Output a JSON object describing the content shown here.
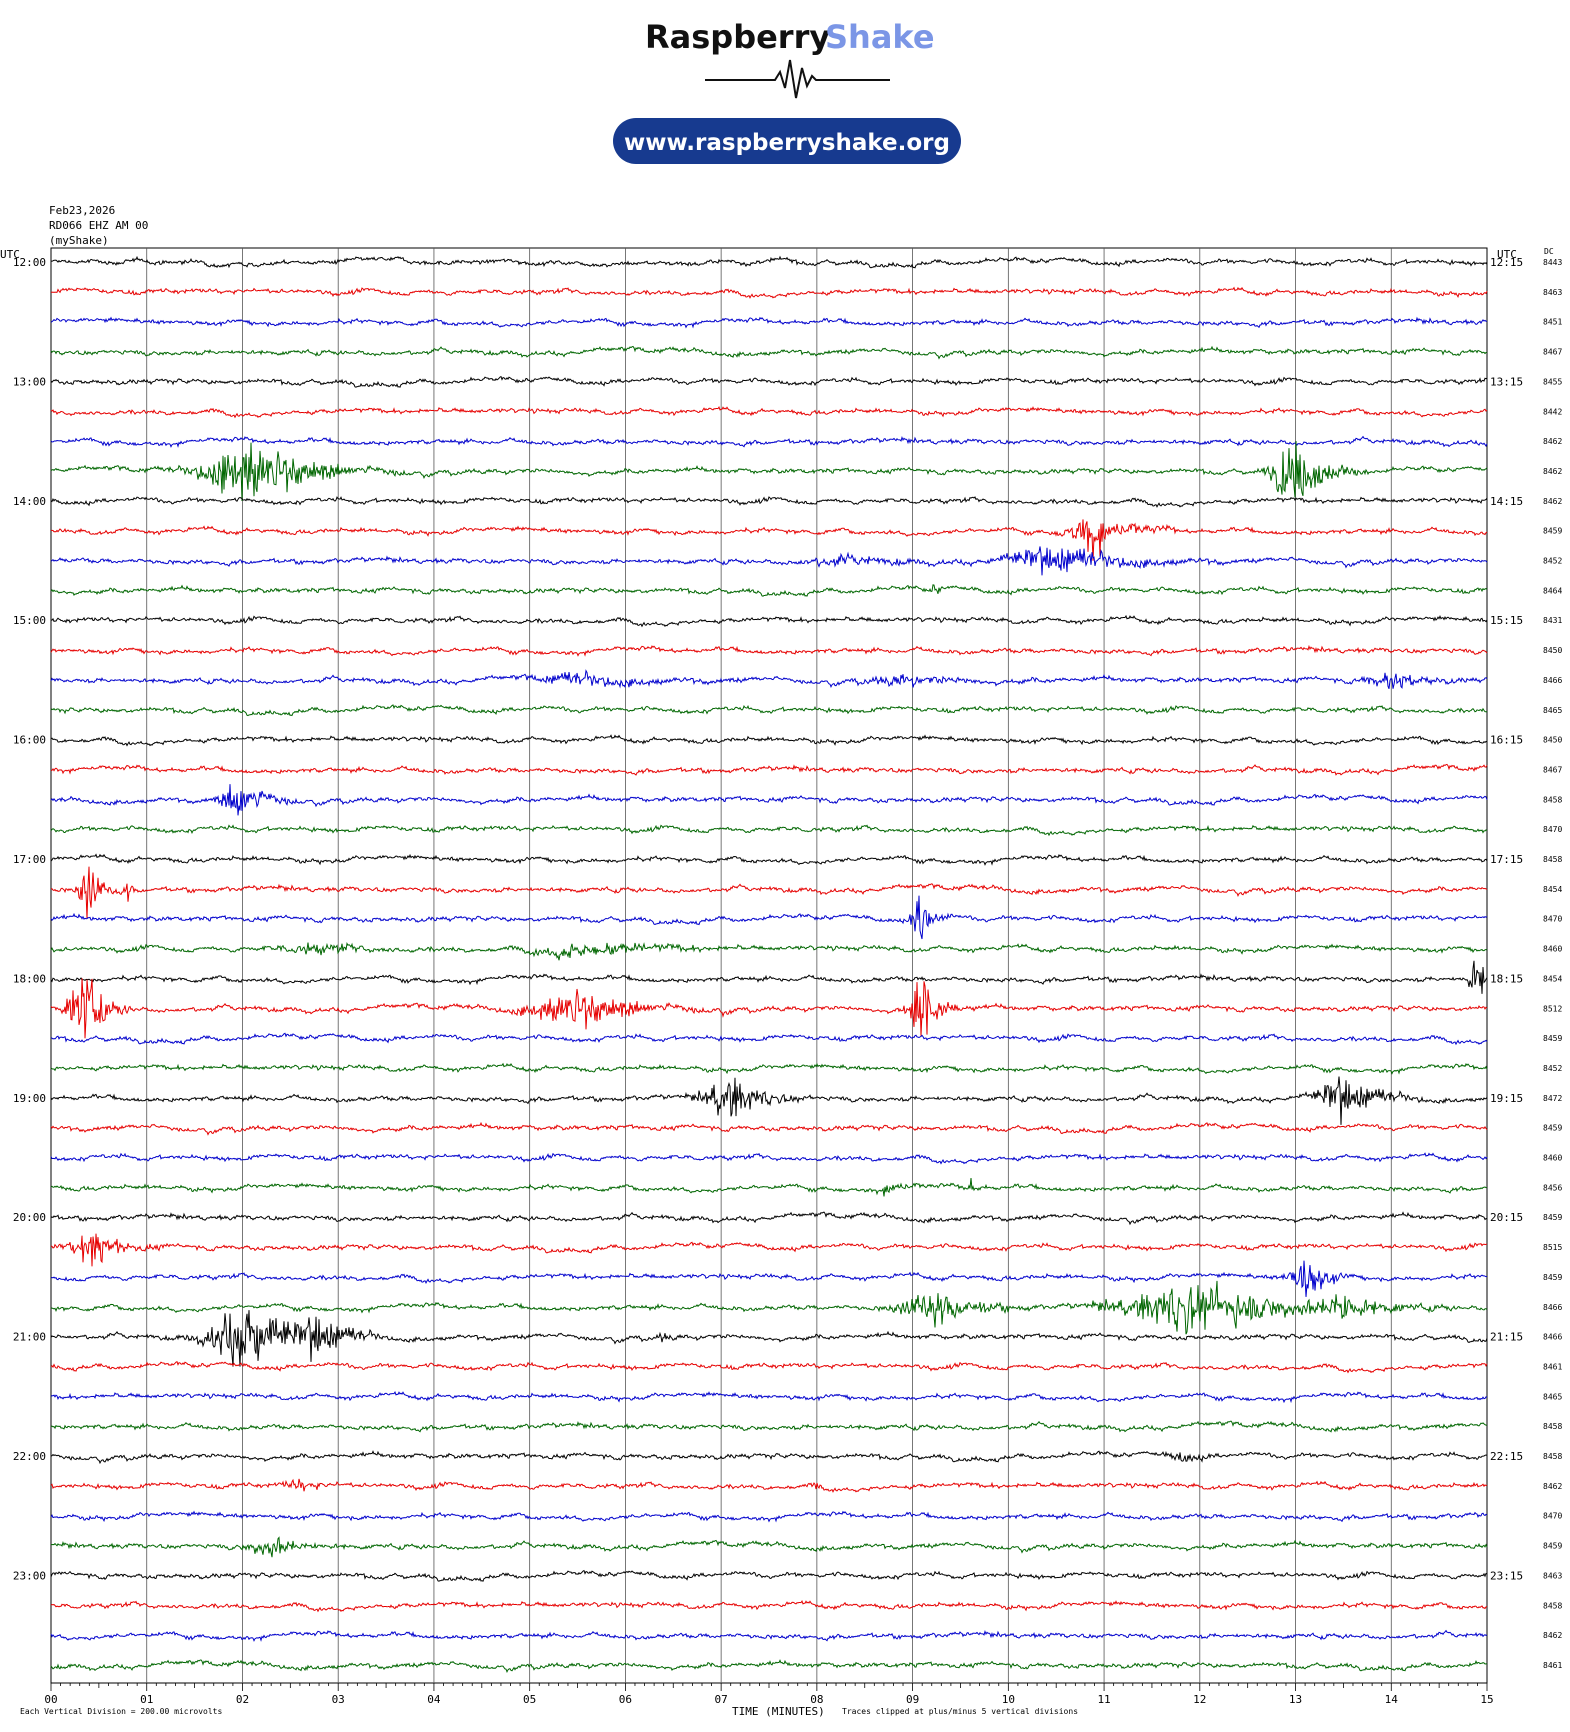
{
  "brand": {
    "name_part1": "Raspberry",
    "name_part2": "Shake",
    "url": "www.raspberryshake.org",
    "accent_color": "#7b96e6",
    "pill_color": "#173a8f"
  },
  "header": {
    "date": "Feb23,2026",
    "station": "RD066 EHZ AM 00",
    "source": "(myShake)"
  },
  "left_axis_title": "UTC",
  "right_axis_title": "UTC",
  "dc_title": "DC",
  "footer": {
    "scale_note": "Each Vertical Division =  200.00 microvolts",
    "x_title": "TIME (MINUTES)",
    "clip_note": "Traces clipped at plus/minus 5 vertical divisions"
  },
  "trace_colors": [
    "#000000",
    "#e60000",
    "#0000cc",
    "#006600"
  ],
  "chart_data": {
    "type": "line",
    "title": "",
    "xlabel": "TIME (MINUTES)",
    "ylabel": "UTC",
    "xlim": [
      0,
      15
    ],
    "x_ticks": [
      "00",
      "01",
      "02",
      "03",
      "04",
      "05",
      "06",
      "07",
      "08",
      "09",
      "10",
      "11",
      "12",
      "13",
      "14",
      "15"
    ],
    "grid": true,
    "left_time_labels": [
      "12:00",
      "13:00",
      "14:00",
      "15:00",
      "16:00",
      "17:00",
      "18:00",
      "19:00",
      "20:00",
      "21:00",
      "22:00",
      "23:00"
    ],
    "right_time_labels": [
      "12:15",
      "13:15",
      "14:15",
      "15:15",
      "16:15",
      "17:15",
      "18:15",
      "19:15",
      "20:15",
      "21:15",
      "22:15",
      "23:15"
    ],
    "dc_offsets": [
      8443,
      8463,
      8451,
      8467,
      8455,
      8442,
      8462,
      8462,
      8462,
      8459,
      8452,
      8464,
      8431,
      8450,
      8466,
      8465,
      8450,
      8467,
      8458,
      8470,
      8458,
      8454,
      8470,
      8460,
      8454,
      8512,
      8459,
      8452,
      8472,
      8459,
      8460,
      8456,
      8459,
      8515,
      8459,
      8466,
      8466,
      8461,
      8465,
      8458,
      8458,
      8462,
      8470,
      8459,
      8463,
      8458,
      8462,
      8461
    ],
    "events": [
      {
        "trace": 7,
        "minute": 2.1,
        "amp": 3.5,
        "dur": 1.5
      },
      {
        "trace": 7,
        "minute": 13.0,
        "amp": 4.0,
        "dur": 0.7
      },
      {
        "trace": 9,
        "minute": 10.9,
        "amp": 2.5,
        "dur": 0.8
      },
      {
        "trace": 10,
        "minute": 10.5,
        "amp": 1.6,
        "dur": 1.6
      },
      {
        "trace": 10,
        "minute": 8.3,
        "amp": 0.5,
        "dur": 1.4
      },
      {
        "trace": 11,
        "minute": 9.25,
        "amp": 0.5,
        "dur": 0.2
      },
      {
        "trace": 14,
        "minute": 5.6,
        "amp": 0.6,
        "dur": 1.6
      },
      {
        "trace": 14,
        "minute": 9.0,
        "amp": 0.5,
        "dur": 1.5
      },
      {
        "trace": 14,
        "minute": 14.0,
        "amp": 1.0,
        "dur": 0.8
      },
      {
        "trace": 18,
        "minute": 2.0,
        "amp": 2.5,
        "dur": 0.6
      },
      {
        "trace": 21,
        "minute": 0.4,
        "amp": 4.5,
        "dur": 0.3
      },
      {
        "trace": 21,
        "minute": 0.8,
        "amp": 1.2,
        "dur": 0.1
      },
      {
        "trace": 22,
        "minute": 9.1,
        "amp": 3.5,
        "dur": 0.3
      },
      {
        "trace": 23,
        "minute": 5.6,
        "amp": 1.0,
        "dur": 1.5
      },
      {
        "trace": 23,
        "minute": 2.8,
        "amp": 0.5,
        "dur": 1.4
      },
      {
        "trace": 24,
        "minute": 14.9,
        "amp": 2.5,
        "dur": 0.3
      },
      {
        "trace": 25,
        "minute": 0.35,
        "amp": 4.5,
        "dur": 0.5
      },
      {
        "trace": 25,
        "minute": 5.5,
        "amp": 2.0,
        "dur": 1.5
      },
      {
        "trace": 25,
        "minute": 9.1,
        "amp": 3.5,
        "dur": 0.5
      },
      {
        "trace": 28,
        "minute": 7.1,
        "amp": 2.6,
        "dur": 0.8
      },
      {
        "trace": 28,
        "minute": 13.5,
        "amp": 2.6,
        "dur": 0.8
      },
      {
        "trace": 31,
        "minute": 8.8,
        "amp": 0.8,
        "dur": 0.4
      },
      {
        "trace": 31,
        "minute": 9.6,
        "amp": 0.8,
        "dur": 0.2
      },
      {
        "trace": 33,
        "minute": 0.45,
        "amp": 2.0,
        "dur": 0.7
      },
      {
        "trace": 34,
        "minute": 13.1,
        "amp": 2.5,
        "dur": 0.5
      },
      {
        "trace": 35,
        "minute": 9.2,
        "amp": 2.2,
        "dur": 1.0
      },
      {
        "trace": 35,
        "minute": 12.0,
        "amp": 2.8,
        "dur": 2.4
      },
      {
        "trace": 35,
        "minute": 13.5,
        "amp": 1.5,
        "dur": 0.6
      },
      {
        "trace": 36,
        "minute": 2.1,
        "amp": 4.0,
        "dur": 1.3
      },
      {
        "trace": 36,
        "minute": 2.8,
        "amp": 2.0,
        "dur": 0.5
      },
      {
        "trace": 36,
        "minute": 6.4,
        "amp": 0.4,
        "dur": 0.2
      },
      {
        "trace": 40,
        "minute": 11.8,
        "amp": 0.6,
        "dur": 0.4
      },
      {
        "trace": 41,
        "minute": 2.6,
        "amp": 0.6,
        "dur": 0.5
      },
      {
        "trace": 41,
        "minute": 8.0,
        "amp": 0.4,
        "dur": 0.1
      },
      {
        "trace": 43,
        "minute": 2.3,
        "amp": 1.2,
        "dur": 0.7
      }
    ]
  }
}
